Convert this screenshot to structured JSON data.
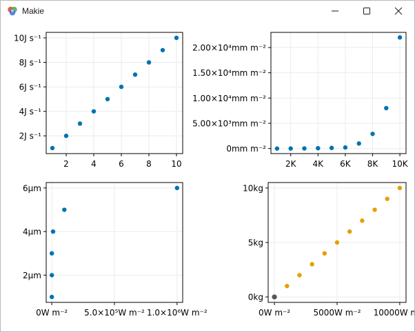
{
  "window": {
    "title": "Makie",
    "icon": "makie-logo-icon",
    "controls": [
      "minimize-icon",
      "maximize-icon",
      "close-icon"
    ]
  },
  "colors": {
    "blue": "#0072b2",
    "orange": "#e69f00",
    "grid": "#ebebeb",
    "spine": "#000000"
  },
  "chart_data": [
    {
      "type": "scatter",
      "x": [
        1,
        2,
        3,
        4,
        5,
        6,
        7,
        8,
        9,
        10
      ],
      "y": [
        1,
        2,
        3,
        4,
        5,
        6,
        7,
        8,
        9,
        10
      ],
      "xlim": [
        0.55,
        10.45
      ],
      "ylim": [
        0.55,
        10.45
      ],
      "xticks": [
        2,
        4,
        6,
        8,
        10
      ],
      "xticklabels": [
        "2",
        "4",
        "6",
        "8",
        "10"
      ],
      "yticks": [
        2,
        4,
        6,
        8,
        10
      ],
      "yticklabels": [
        "2J s⁻¹",
        "4J s⁻¹",
        "6J s⁻¹",
        "8J s⁻¹",
        "10J s⁻¹"
      ],
      "color": "#0072b2",
      "grid": true
    },
    {
      "type": "scatter",
      "x": [
        1000,
        2000,
        3000,
        4000,
        5000,
        6000,
        7000,
        8000,
        9000,
        10000
      ],
      "y": [
        1,
        8,
        27,
        64,
        125,
        216,
        1000,
        2900,
        8000,
        22000
      ],
      "xlim": [
        550,
        10450
      ],
      "ylim": [
        -1000,
        23000
      ],
      "xticks": [
        2000,
        4000,
        6000,
        8000,
        10000
      ],
      "xticklabels": [
        "2K",
        "4K",
        "6K",
        "8K",
        "10K"
      ],
      "yticks": [
        0,
        5000,
        10000,
        15000,
        20000
      ],
      "yticklabels": [
        "0mm m⁻²",
        "5.00×10³mm m⁻²",
        "1.00×10⁴mm m⁻²",
        "1.50×10⁴mm m⁻²",
        "2.00×10⁴mm m⁻²"
      ],
      "color": "#0072b2",
      "grid": true
    },
    {
      "type": "scatter",
      "x": [
        1,
        2,
        3,
        10000,
        100000,
        1000000
      ],
      "y": [
        1,
        2,
        3,
        4,
        5,
        6
      ],
      "xlim": [
        -45000,
        1045000
      ],
      "ylim": [
        0.75,
        6.25
      ],
      "xticks": [
        0,
        500000,
        1000000
      ],
      "xticklabels": [
        "0W m⁻²",
        "5.0×10⁵W m⁻²",
        "1.0×10⁶W m⁻²"
      ],
      "yticks": [
        2,
        4,
        6
      ],
      "yticklabels": [
        "2μm",
        "4μm",
        "6μm"
      ],
      "color": "#0072b2",
      "grid": true
    },
    {
      "type": "scatter",
      "x": [
        0,
        1000,
        2000,
        3000,
        4000,
        5000,
        6000,
        7000,
        8000,
        9000,
        10000
      ],
      "y": [
        0,
        1,
        2,
        3,
        4,
        5,
        6,
        7,
        8,
        9,
        10
      ],
      "xlim": [
        -500,
        10500
      ],
      "ylim": [
        -0.5,
        10.5
      ],
      "xticks": [
        0,
        5000,
        10000
      ],
      "xticklabels": [
        "0W m⁻²",
        "5000W m⁻²",
        "10000W m⁻²"
      ],
      "yticks": [
        0,
        5,
        10
      ],
      "yticklabels": [
        "0kg",
        "5kg",
        "10kg"
      ],
      "color": "#e69f00",
      "grid": true,
      "origin_marker": true
    }
  ]
}
